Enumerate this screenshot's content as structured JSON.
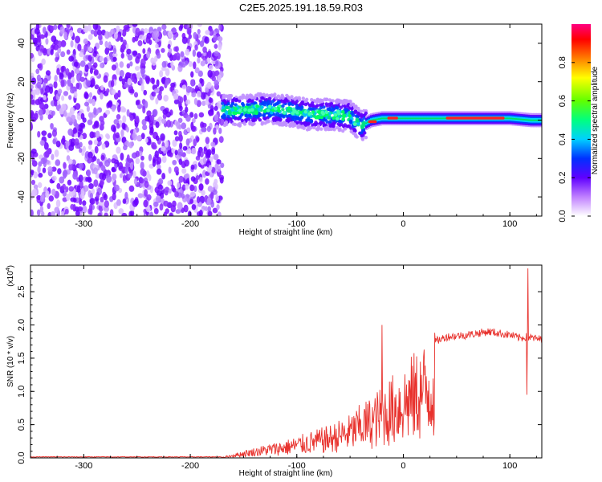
{
  "title": "C2E5.2025.191.18.59.R03",
  "chart_data": [
    {
      "type": "heatmap",
      "xlabel": "Height of straight line (km)",
      "ylabel": "Frequency (Hz)",
      "xlim": [
        -350,
        130
      ],
      "ylim": [
        -50,
        50
      ],
      "xticks": [
        -300,
        -200,
        -100,
        0,
        100
      ],
      "xtick_labels": [
        "-300",
        "-200",
        "-100",
        "0",
        "100"
      ],
      "yticks": [
        -40,
        -20,
        0,
        20,
        40
      ],
      "ytick_labels": [
        "-40",
        "-20",
        "0",
        "20",
        "40"
      ],
      "colorbar": {
        "label": "Normalized spectral amplitude",
        "range": [
          0,
          1
        ],
        "ticks": [
          0.0,
          0.2,
          0.4,
          0.6,
          0.8
        ],
        "tick_labels": [
          "0.0",
          "0.2",
          "0.4",
          "0.6",
          "0.8"
        ]
      },
      "regions": [
        {
          "x_range": [
            -350,
            -170
          ],
          "description_freq_range": [
            -50,
            50
          ],
          "amplitude": 0.1
        },
        {
          "x_range": [
            -170,
            -35
          ],
          "description_freq_range": [
            -10,
            12
          ],
          "amplitude": 0.4
        },
        {
          "x_range": [
            -35,
            130
          ],
          "description_freq_range": [
            -3,
            4
          ],
          "amplitude": 0.9
        }
      ],
      "ridge": [
        {
          "x": -170,
          "f": 5
        },
        {
          "x": -150,
          "f": 5
        },
        {
          "x": -130,
          "f": 6
        },
        {
          "x": -110,
          "f": 5
        },
        {
          "x": -90,
          "f": 3
        },
        {
          "x": -70,
          "f": 3
        },
        {
          "x": -50,
          "f": 2
        },
        {
          "x": -40,
          "f": -3
        },
        {
          "x": -30,
          "f": 0
        },
        {
          "x": -20,
          "f": 1
        },
        {
          "x": 0,
          "f": 1
        },
        {
          "x": 50,
          "f": 1
        },
        {
          "x": 100,
          "f": 1
        },
        {
          "x": 120,
          "f": 0
        },
        {
          "x": 130,
          "f": 0
        }
      ]
    },
    {
      "type": "line",
      "xlabel": "Height of straight line (km)",
      "ylabel": "SNR (10 * v/v)",
      "y_multiplier_label": "(x10",
      "y_multiplier_exp": "4",
      "y_multiplier_close": ")",
      "xlim": [
        -350,
        130
      ],
      "ylim": [
        0,
        2.9
      ],
      "xticks": [
        -300,
        -200,
        -100,
        0,
        100
      ],
      "xtick_labels": [
        "-300",
        "-200",
        "-100",
        "0",
        "100"
      ],
      "yticks": [
        0,
        0.5,
        1.0,
        1.5,
        2.0,
        2.5
      ],
      "ytick_labels": [
        "0.0",
        "0.5",
        "1.0",
        "1.5",
        "2.0",
        "2.5"
      ],
      "color": "#e8322d",
      "envelope": [
        {
          "x": -350,
          "y": 0.0
        },
        {
          "x": -170,
          "y": 0.01
        },
        {
          "x": -150,
          "y": 0.1
        },
        {
          "x": -130,
          "y": 0.18
        },
        {
          "x": -110,
          "y": 0.25
        },
        {
          "x": -90,
          "y": 0.35
        },
        {
          "x": -70,
          "y": 0.45
        },
        {
          "x": -50,
          "y": 0.6
        },
        {
          "x": -40,
          "y": 0.75
        },
        {
          "x": -30,
          "y": 0.85
        },
        {
          "x": -20,
          "y": 1.0
        },
        {
          "x": -10,
          "y": 1.15
        },
        {
          "x": 0,
          "y": 1.3
        },
        {
          "x": 10,
          "y": 1.45
        },
        {
          "x": 20,
          "y": 1.6
        },
        {
          "x": 30,
          "y": 1.75
        },
        {
          "x": 40,
          "y": 1.82
        },
        {
          "x": 60,
          "y": 1.85
        },
        {
          "x": 80,
          "y": 1.9
        },
        {
          "x": 100,
          "y": 1.85
        },
        {
          "x": 110,
          "y": 1.8
        },
        {
          "x": 115,
          "y": 1.82
        },
        {
          "x": 130,
          "y": 1.78
        }
      ],
      "spikes": [
        {
          "x": -20,
          "y": 2.0
        },
        {
          "x": 116,
          "y": 0.95
        },
        {
          "x": 117,
          "y": 2.85
        }
      ]
    }
  ]
}
